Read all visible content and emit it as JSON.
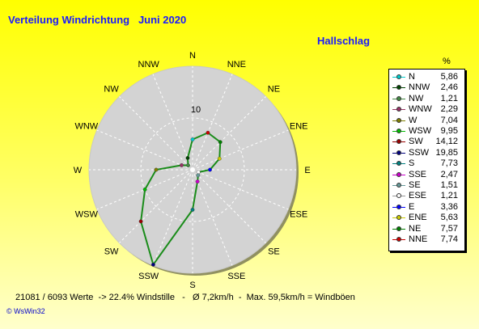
{
  "header": {
    "title": "Verteilung Windrichtung   Juni 2020",
    "station": "Hallschlag"
  },
  "chart_data": {
    "type": "radar",
    "title": "Verteilung Windrichtung   Juni 2020",
    "unit": "%",
    "ring_label": "10",
    "rmax": 20,
    "directions": [
      "N",
      "NNE",
      "NE",
      "ENE",
      "E",
      "ESE",
      "SE",
      "SSE",
      "S",
      "SSW",
      "SW",
      "WSW",
      "W",
      "WNW",
      "NW",
      "NNW"
    ],
    "series": [
      {
        "name": "N",
        "value": 5.86,
        "color": "#00cccc"
      },
      {
        "name": "NNW",
        "value": 2.46,
        "color": "#004400"
      },
      {
        "name": "NW",
        "value": 1.21,
        "color": "#448844"
      },
      {
        "name": "WNW",
        "value": 2.29,
        "color": "#993366"
      },
      {
        "name": "W",
        "value": 7.04,
        "color": "#808000"
      },
      {
        "name": "WSW",
        "value": 9.95,
        "color": "#00bb00"
      },
      {
        "name": "SW",
        "value": 14.12,
        "color": "#990000"
      },
      {
        "name": "SSW",
        "value": 19.85,
        "color": "#000080"
      },
      {
        "name": "S",
        "value": 7.73,
        "color": "#008080"
      },
      {
        "name": "SSE",
        "value": 2.47,
        "color": "#cc00cc"
      },
      {
        "name": "SE",
        "value": 1.51,
        "color": "#669999"
      },
      {
        "name": "ESE",
        "value": 1.21,
        "color": "#ffffff"
      },
      {
        "name": "E",
        "value": 3.36,
        "color": "#0000ff"
      },
      {
        "name": "ENE",
        "value": 5.63,
        "color": "#cccc00"
      },
      {
        "name": "NE",
        "value": 7.57,
        "color": "#008000"
      },
      {
        "name": "NNE",
        "value": 7.74,
        "color": "#cc0000"
      }
    ],
    "line_color": "#1a8c1a"
  },
  "footer": {
    "text": "21081 / 6093 Werte  -> 22.4% Windstille   -   Ø 7,2km/h  -  Max. 59,5km/h = Windböen",
    "brand": "© WsWin32"
  }
}
